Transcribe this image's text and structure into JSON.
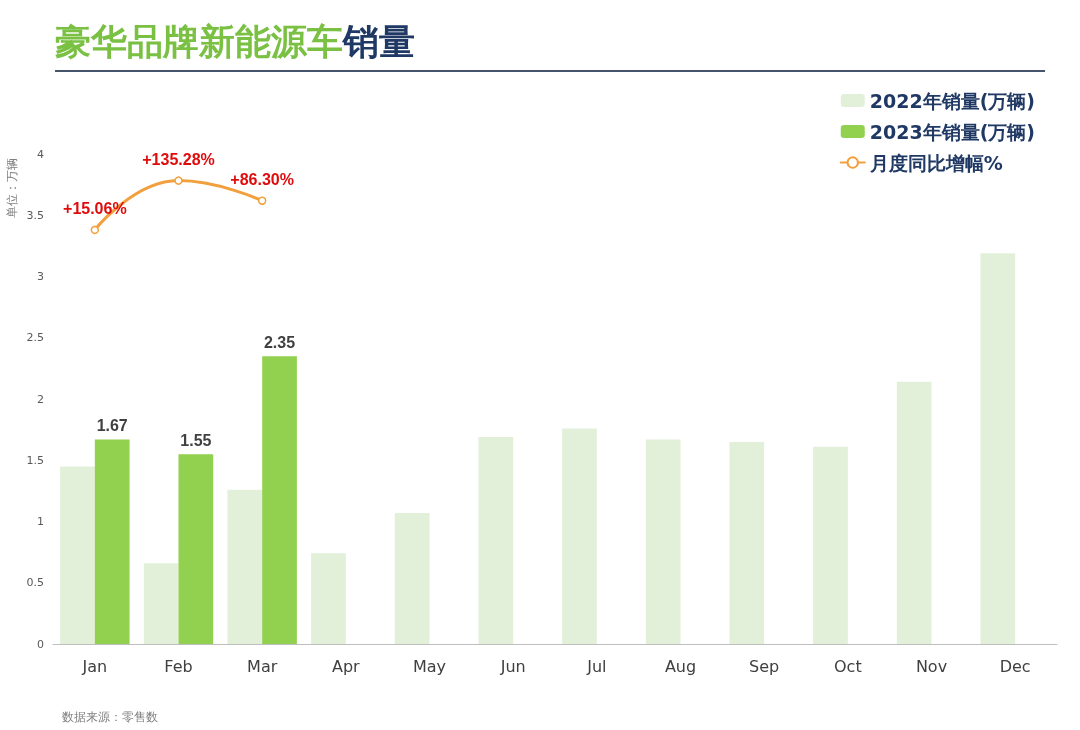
{
  "chart_data": {
    "type": "bar",
    "title": "豪华品牌新能源车销量",
    "ylabel": "单位：万辆",
    "categories": [
      "Jan",
      "Feb",
      "Mar",
      "Apr",
      "May",
      "Jun",
      "Jul",
      "Aug",
      "Sep",
      "Oct",
      "Nov",
      "Dec"
    ],
    "series": [
      {
        "name": "2022年销量(万辆)",
        "color": "#e2f0d9",
        "values": [
          1.45,
          0.66,
          1.26,
          0.74,
          1.07,
          1.69,
          1.76,
          1.67,
          1.65,
          1.61,
          2.14,
          3.19
        ]
      },
      {
        "name": "2023年销量(万辆)",
        "color": "#92d050",
        "values": [
          1.67,
          1.55,
          2.35,
          null,
          null,
          null,
          null,
          null,
          null,
          null,
          null,
          null
        ],
        "value_labels": [
          "1.67",
          "1.55",
          "2.35",
          null,
          null,
          null,
          null,
          null,
          null,
          null,
          null,
          null
        ]
      },
      {
        "name": "月度同比增幅%",
        "type": "line",
        "axis": "y2",
        "color": "#f2a03d",
        "values": [
          15.06,
          135.28,
          86.3,
          null,
          null,
          null,
          null,
          null,
          null,
          null,
          null,
          null
        ],
        "value_labels": [
          "+15.06%",
          "+135.28%",
          "+86.30%",
          null,
          null,
          null,
          null,
          null,
          null,
          null,
          null,
          null
        ]
      }
    ],
    "ylim": [
      0,
      4
    ],
    "yticks": [
      0,
      0.5,
      1,
      1.5,
      2,
      2.5,
      3,
      3.5,
      4
    ],
    "marker": "circle",
    "line_style": "solid",
    "legend": "top right",
    "annotations": [
      "数据来源：零售数"
    ]
  }
}
